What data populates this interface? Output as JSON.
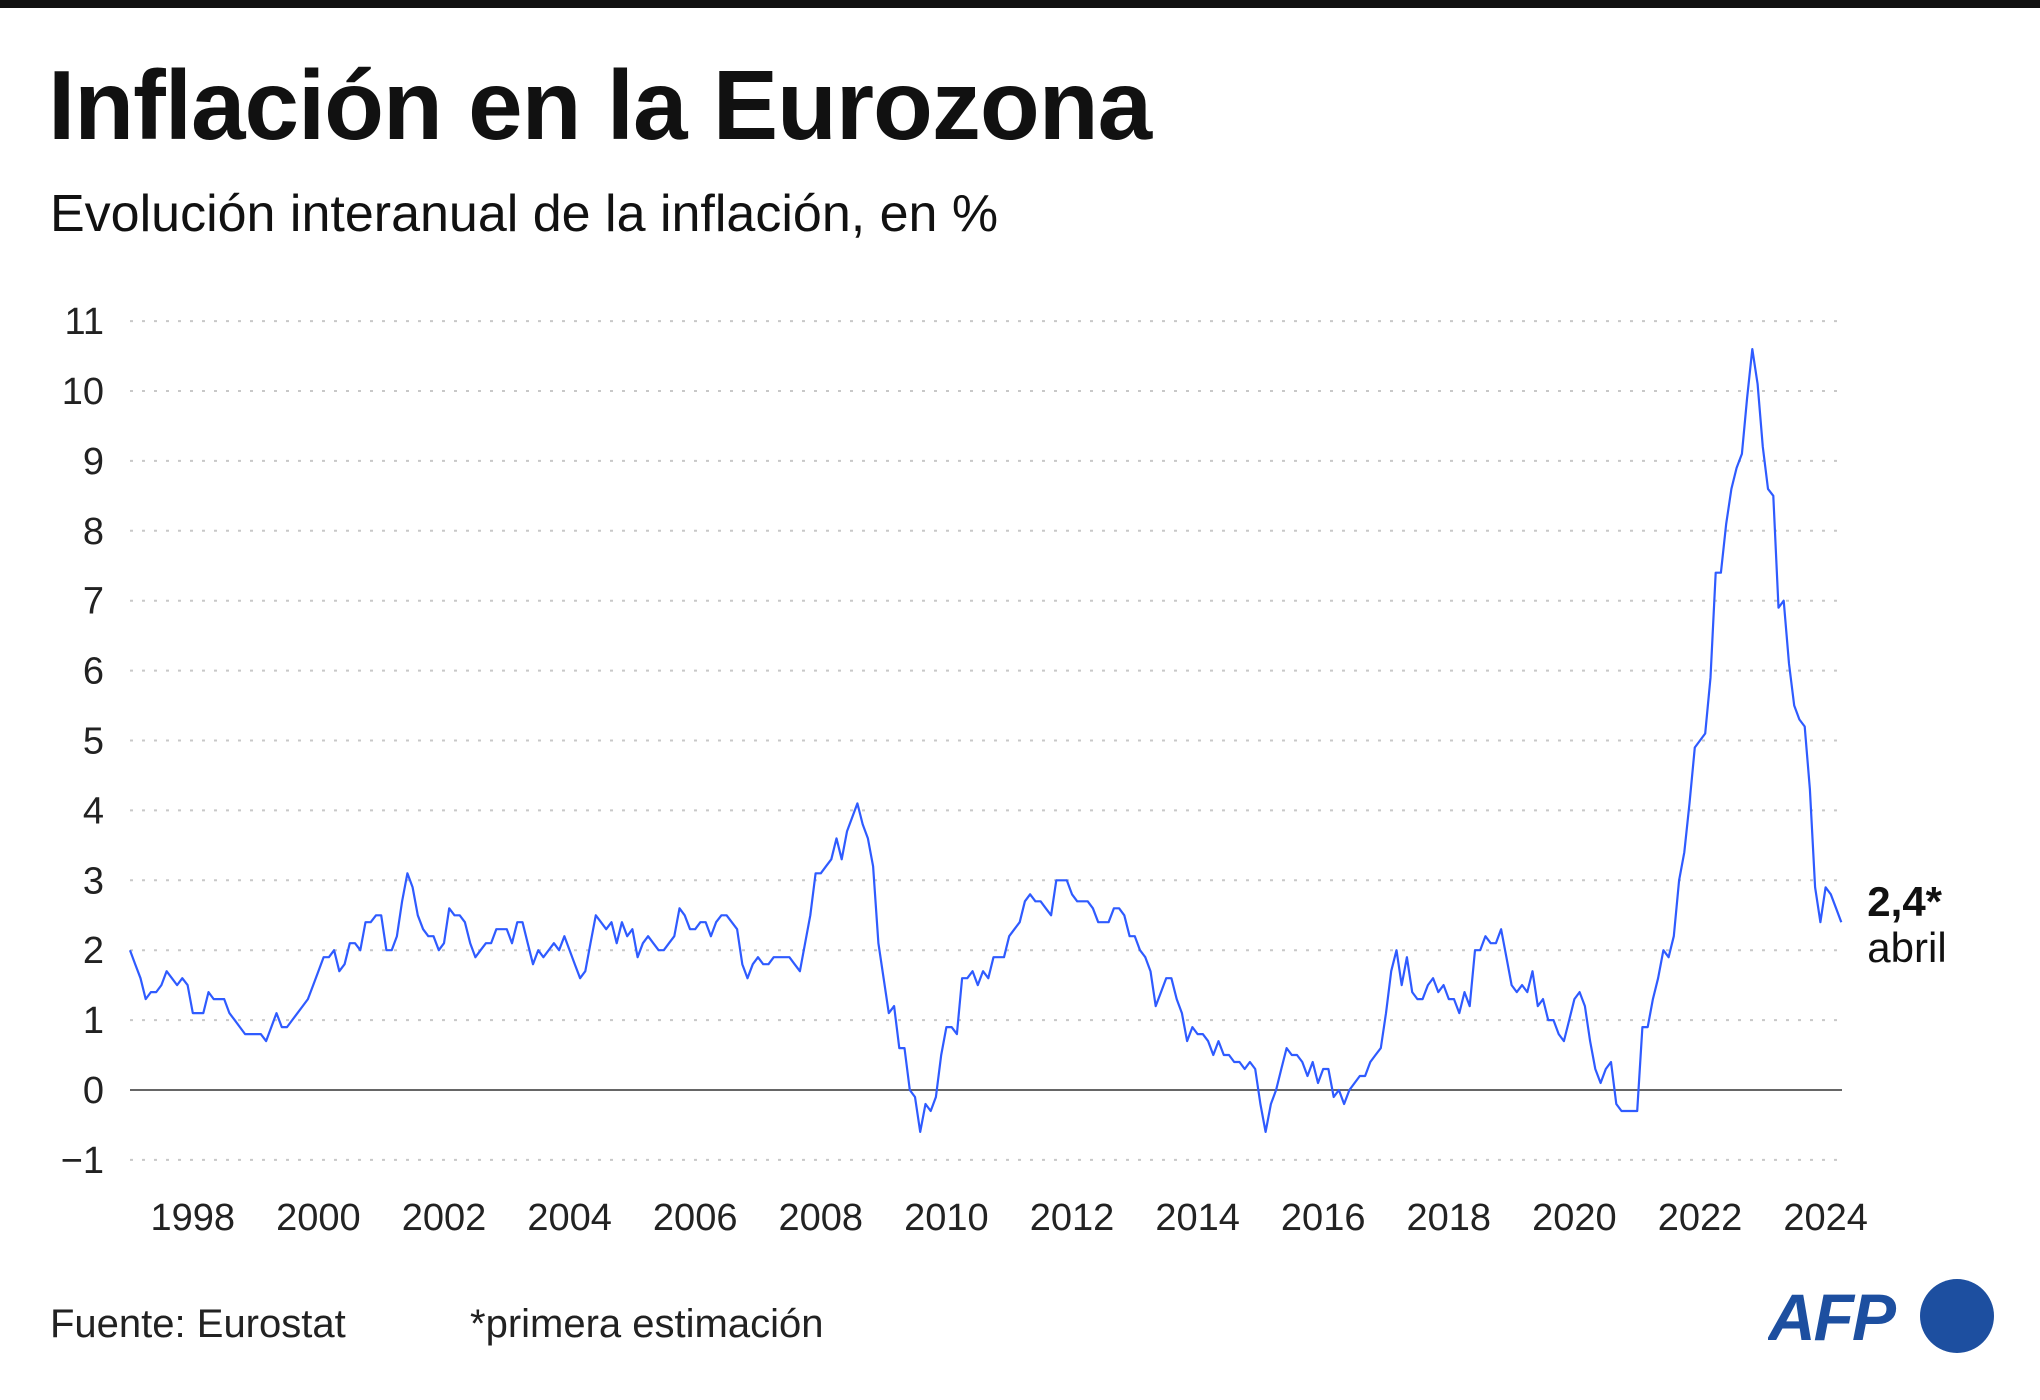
{
  "title": "Inflación en la Eurozona",
  "subtitle": "Evolución interanual de la inflación, en %",
  "footer": {
    "source": "Fuente: Eurostat",
    "note": "*primera estimación"
  },
  "logo": {
    "text": "AFP",
    "color": "#1d4fa0"
  },
  "chart_data": {
    "type": "line",
    "title": "Inflación en la Eurozona",
    "subtitle": "Evolución interanual de la inflación, en %",
    "frequency": "monthly",
    "x_start": "1997-01",
    "x_end": "2024-04",
    "xlim": [
      1997,
      2024.33
    ],
    "ylim": [
      -1,
      11
    ],
    "yticks": [
      -1,
      0,
      1,
      2,
      3,
      4,
      5,
      6,
      7,
      8,
      9,
      10,
      11
    ],
    "xticks": [
      "1998",
      "2000",
      "2002",
      "2004",
      "2006",
      "2008",
      "2010",
      "2012",
      "2014",
      "2016",
      "2018",
      "2020",
      "2022",
      "2024"
    ],
    "grid": "horizontal-dotted",
    "line_color": "#2f5bff",
    "end_label": {
      "value": "2,4*",
      "month": "abril"
    },
    "values": [
      2.0,
      1.8,
      1.6,
      1.3,
      1.4,
      1.4,
      1.5,
      1.7,
      1.6,
      1.5,
      1.6,
      1.5,
      1.1,
      1.1,
      1.1,
      1.4,
      1.3,
      1.3,
      1.3,
      1.1,
      1.0,
      0.9,
      0.8,
      0.8,
      0.8,
      0.8,
      0.7,
      0.9,
      1.1,
      0.9,
      0.9,
      1.0,
      1.1,
      1.2,
      1.3,
      1.5,
      1.7,
      1.9,
      1.9,
      2.0,
      1.7,
      1.8,
      2.1,
      2.1,
      2.0,
      2.4,
      2.4,
      2.5,
      2.5,
      2.0,
      2.0,
      2.2,
      2.7,
      3.1,
      2.9,
      2.5,
      2.3,
      2.2,
      2.2,
      2.0,
      2.1,
      2.6,
      2.5,
      2.5,
      2.4,
      2.1,
      1.9,
      2.0,
      2.1,
      2.1,
      2.3,
      2.3,
      2.3,
      2.1,
      2.4,
      2.4,
      2.1,
      1.8,
      2.0,
      1.9,
      2.0,
      2.1,
      2.0,
      2.2,
      2.0,
      1.8,
      1.6,
      1.7,
      2.1,
      2.5,
      2.4,
      2.3,
      2.4,
      2.1,
      2.4,
      2.2,
      2.3,
      1.9,
      2.1,
      2.2,
      2.1,
      2.0,
      2.0,
      2.1,
      2.2,
      2.6,
      2.5,
      2.3,
      2.3,
      2.4,
      2.4,
      2.2,
      2.4,
      2.5,
      2.5,
      2.4,
      2.3,
      1.8,
      1.6,
      1.8,
      1.9,
      1.8,
      1.8,
      1.9,
      1.9,
      1.9,
      1.9,
      1.8,
      1.7,
      2.1,
      2.5,
      3.1,
      3.1,
      3.2,
      3.3,
      3.6,
      3.3,
      3.7,
      3.9,
      4.1,
      3.8,
      3.6,
      3.2,
      2.1,
      1.6,
      1.1,
      1.2,
      0.6,
      0.6,
      0.0,
      -0.1,
      -0.6,
      -0.2,
      -0.3,
      -0.1,
      0.5,
      0.9,
      0.9,
      0.8,
      1.6,
      1.6,
      1.7,
      1.5,
      1.7,
      1.6,
      1.9,
      1.9,
      1.9,
      2.2,
      2.3,
      2.4,
      2.7,
      2.8,
      2.7,
      2.7,
      2.6,
      2.5,
      3.0,
      3.0,
      3.0,
      2.8,
      2.7,
      2.7,
      2.7,
      2.6,
      2.4,
      2.4,
      2.4,
      2.6,
      2.6,
      2.5,
      2.2,
      2.2,
      2.0,
      1.9,
      1.7,
      1.2,
      1.4,
      1.6,
      1.6,
      1.3,
      1.1,
      0.7,
      0.9,
      0.8,
      0.8,
      0.7,
      0.5,
      0.7,
      0.5,
      0.5,
      0.4,
      0.4,
      0.3,
      0.4,
      0.3,
      -0.2,
      -0.6,
      -0.2,
      0.0,
      0.3,
      0.6,
      0.5,
      0.5,
      0.4,
      0.2,
      0.4,
      0.1,
      0.3,
      0.3,
      -0.1,
      0.0,
      -0.2,
      0.0,
      0.1,
      0.2,
      0.2,
      0.4,
      0.5,
      0.6,
      1.1,
      1.7,
      2.0,
      1.5,
      1.9,
      1.4,
      1.3,
      1.3,
      1.5,
      1.6,
      1.4,
      1.5,
      1.3,
      1.3,
      1.1,
      1.4,
      1.2,
      2.0,
      2.0,
      2.2,
      2.1,
      2.1,
      2.3,
      1.9,
      1.5,
      1.4,
      1.5,
      1.4,
      1.7,
      1.2,
      1.3,
      1.0,
      1.0,
      0.8,
      0.7,
      1.0,
      1.3,
      1.4,
      1.2,
      0.7,
      0.3,
      0.1,
      0.3,
      0.4,
      -0.2,
      -0.3,
      -0.3,
      -0.3,
      -0.3,
      0.9,
      0.9,
      1.3,
      1.6,
      2.0,
      1.9,
      2.2,
      3.0,
      3.4,
      4.1,
      4.9,
      5.0,
      5.1,
      5.9,
      7.4,
      7.4,
      8.1,
      8.6,
      8.9,
      9.1,
      9.9,
      10.6,
      10.1,
      9.2,
      8.6,
      8.5,
      6.9,
      7.0,
      6.1,
      5.5,
      5.3,
      5.2,
      4.3,
      2.9,
      2.4,
      2.9,
      2.8,
      2.6,
      2.4
    ]
  }
}
